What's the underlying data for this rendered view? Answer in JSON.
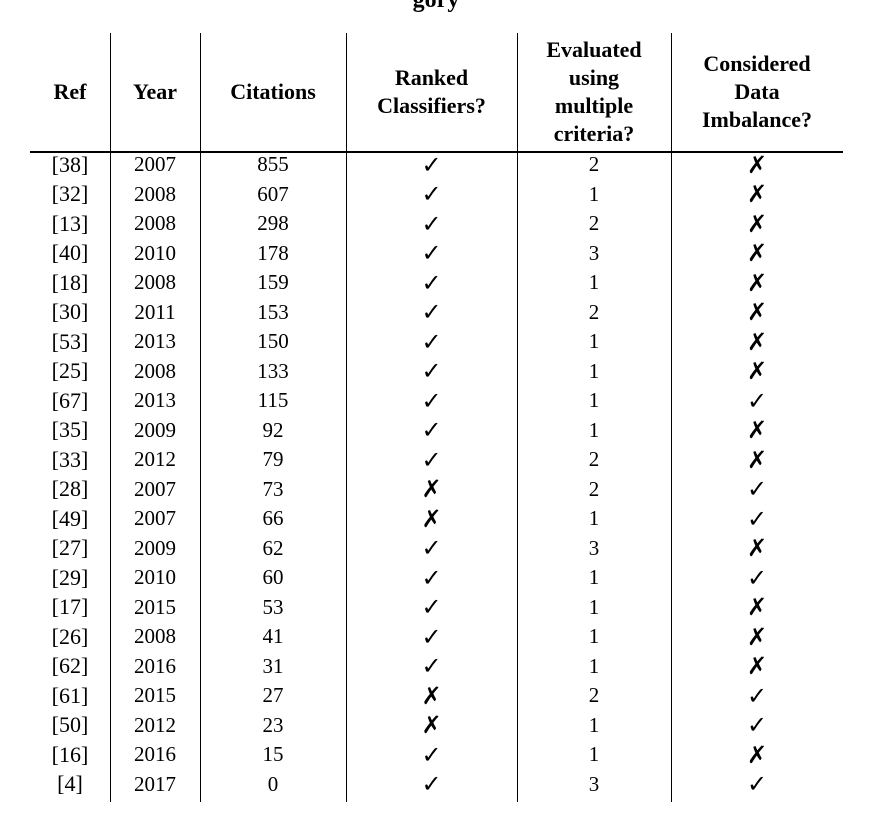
{
  "caption": "gory",
  "columns": {
    "ref": "Ref",
    "year": "Year",
    "citations": "Citations",
    "ranked": [
      "Ranked",
      "Classifiers?"
    ],
    "evaluated": [
      "Evaluated",
      "using",
      "multiple",
      "criteria?"
    ],
    "imbalance": [
      "Considered",
      "Data",
      "Imbalance?"
    ]
  },
  "symbols": {
    "yes": "✓",
    "no": "✗"
  },
  "rows": [
    {
      "ref": "[38]",
      "year": "2007",
      "citations": "855",
      "ranked": "✓",
      "criteria": "2",
      "imbalance": "✗"
    },
    {
      "ref": "[32]",
      "year": "2008",
      "citations": "607",
      "ranked": "✓",
      "criteria": "1",
      "imbalance": "✗"
    },
    {
      "ref": "[13]",
      "year": "2008",
      "citations": "298",
      "ranked": "✓",
      "criteria": "2",
      "imbalance": "✗"
    },
    {
      "ref": "[40]",
      "year": "2010",
      "citations": "178",
      "ranked": "✓",
      "criteria": "3",
      "imbalance": "✗"
    },
    {
      "ref": "[18]",
      "year": "2008",
      "citations": "159",
      "ranked": "✓",
      "criteria": "1",
      "imbalance": "✗"
    },
    {
      "ref": "[30]",
      "year": "2011",
      "citations": "153",
      "ranked": "✓",
      "criteria": "2",
      "imbalance": "✗"
    },
    {
      "ref": "[53]",
      "year": "2013",
      "citations": "150",
      "ranked": "✓",
      "criteria": "1",
      "imbalance": "✗"
    },
    {
      "ref": "[25]",
      "year": "2008",
      "citations": "133",
      "ranked": "✓",
      "criteria": "1",
      "imbalance": "✗"
    },
    {
      "ref": "[67]",
      "year": "2013",
      "citations": "115",
      "ranked": "✓",
      "criteria": "1",
      "imbalance": "✓"
    },
    {
      "ref": "[35]",
      "year": "2009",
      "citations": "92",
      "ranked": "✓",
      "criteria": "1",
      "imbalance": "✗"
    },
    {
      "ref": "[33]",
      "year": "2012",
      "citations": "79",
      "ranked": "✓",
      "criteria": "2",
      "imbalance": "✗"
    },
    {
      "ref": "[28]",
      "year": "2007",
      "citations": "73",
      "ranked": "✗",
      "criteria": "2",
      "imbalance": "✓"
    },
    {
      "ref": "[49]",
      "year": "2007",
      "citations": "66",
      "ranked": "✗",
      "criteria": "1",
      "imbalance": "✓"
    },
    {
      "ref": "[27]",
      "year": "2009",
      "citations": "62",
      "ranked": "✓",
      "criteria": "3",
      "imbalance": "✗"
    },
    {
      "ref": "[29]",
      "year": "2010",
      "citations": "60",
      "ranked": "✓",
      "criteria": "1",
      "imbalance": "✓"
    },
    {
      "ref": "[17]",
      "year": "2015",
      "citations": "53",
      "ranked": "✓",
      "criteria": "1",
      "imbalance": "✗"
    },
    {
      "ref": "[26]",
      "year": "2008",
      "citations": "41",
      "ranked": "✓",
      "criteria": "1",
      "imbalance": "✗"
    },
    {
      "ref": "[62]",
      "year": "2016",
      "citations": "31",
      "ranked": "✓",
      "criteria": "1",
      "imbalance": "✗"
    },
    {
      "ref": "[61]",
      "year": "2015",
      "citations": "27",
      "ranked": "✗",
      "criteria": "2",
      "imbalance": "✓"
    },
    {
      "ref": "[50]",
      "year": "2012",
      "citations": "23",
      "ranked": "✗",
      "criteria": "1",
      "imbalance": "✓"
    },
    {
      "ref": "[16]",
      "year": "2016",
      "citations": "15",
      "ranked": "✓",
      "criteria": "1",
      "imbalance": "✗"
    },
    {
      "ref": "[4]",
      "year": "2017",
      "citations": "0",
      "ranked": "✓",
      "criteria": "3",
      "imbalance": "✓"
    }
  ]
}
